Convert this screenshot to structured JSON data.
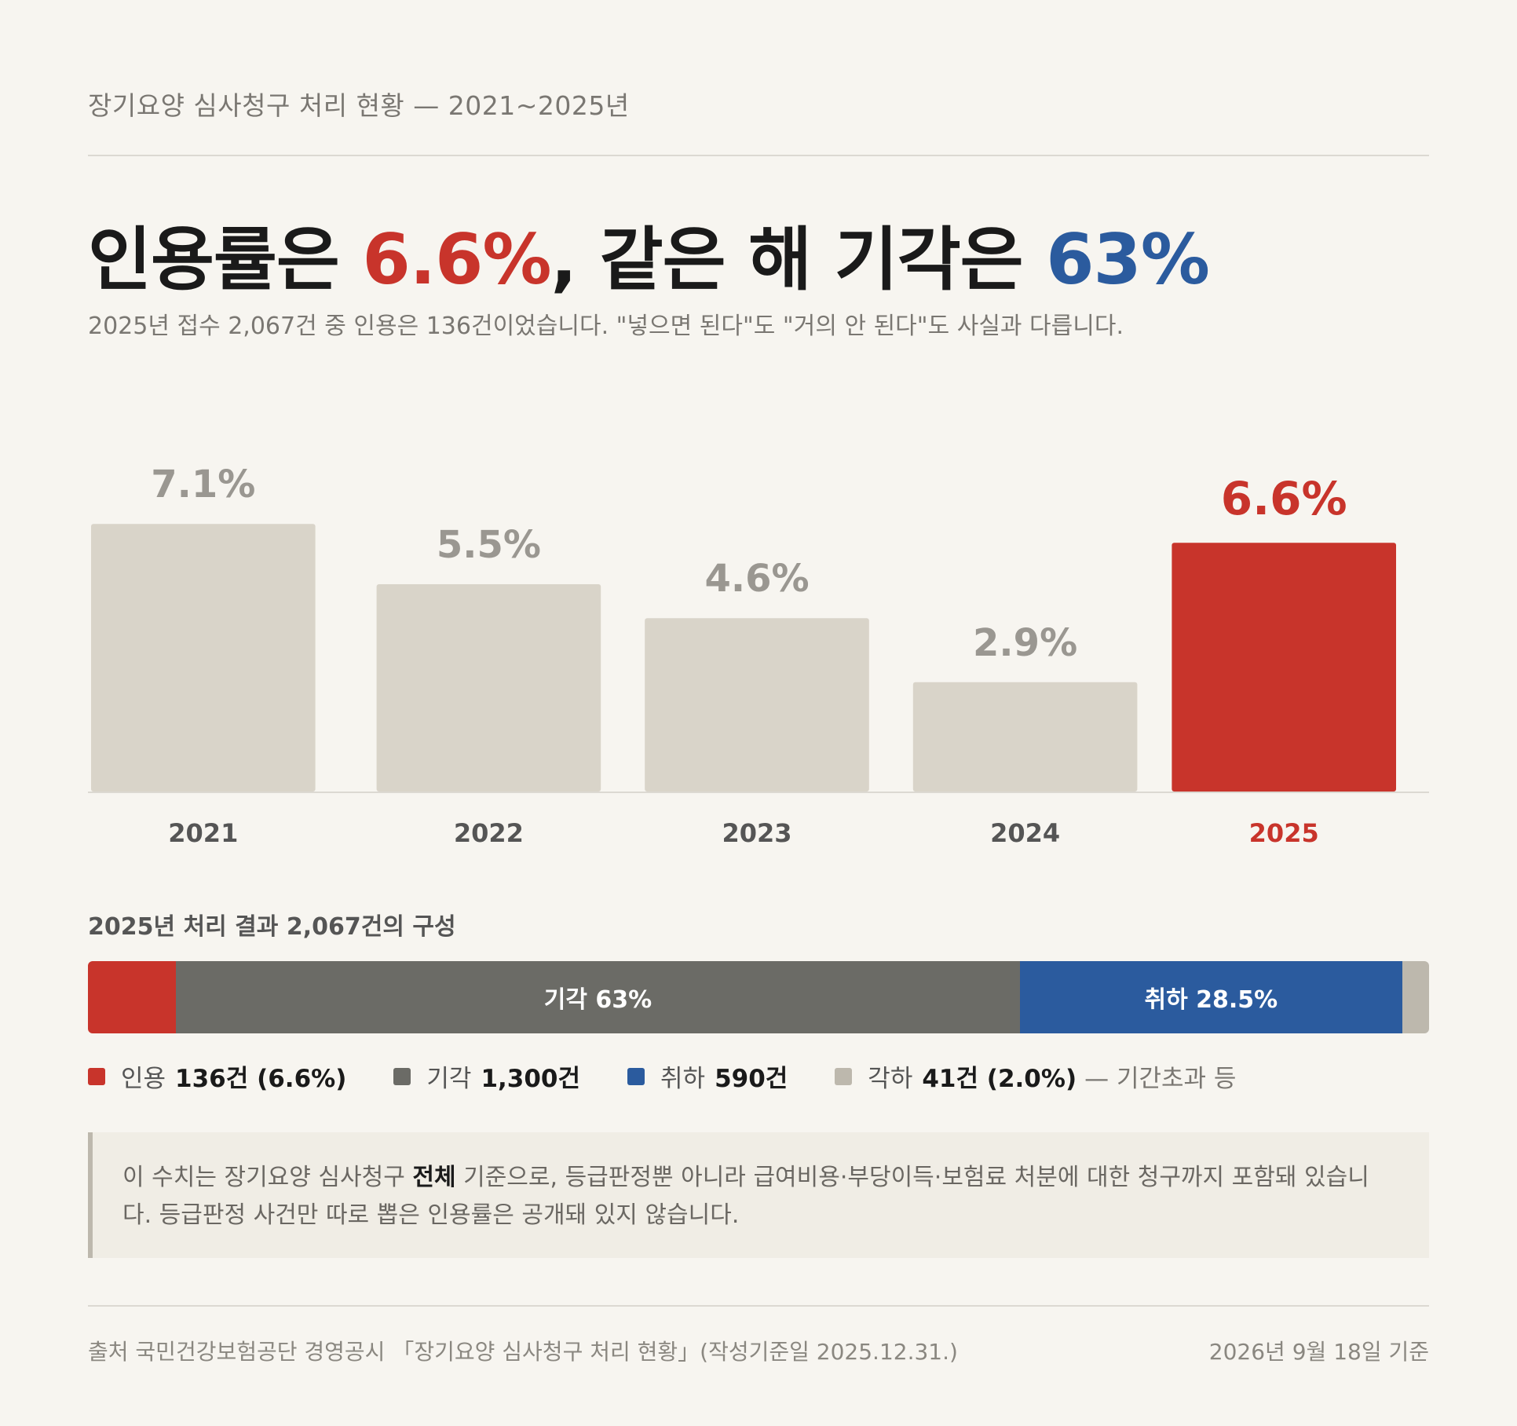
{
  "kicker": "장기요양 심사청구 처리 현황 — 2021~2025년",
  "headline": {
    "part1": "인용률은 ",
    "red_value": "6.6%",
    "part2": ", 같은 해 기각은 ",
    "blue_value": "63%"
  },
  "subtitle": "2025년 접수 2,067건 중 인용은 136건이었습니다. \"넣으면 된다\"도 \"거의 안 된다\"도 사실과 다릅니다.",
  "colors": {
    "highlight": "#c8342b",
    "bar_default": "#d9d4c9",
    "label_default": "#9a9791",
    "axis_label": "#555555",
    "rejected": "#6b6b66",
    "withdrawn": "#2b5b9e",
    "dismissed": "#bdb8ad"
  },
  "chart_data": {
    "type": "bar",
    "categories": [
      "2021",
      "2022",
      "2023",
      "2024",
      "2025"
    ],
    "values": [
      7.1,
      5.5,
      4.6,
      2.9,
      6.6
    ],
    "value_labels": [
      "7.1%",
      "5.5%",
      "4.6%",
      "2.9%",
      "6.6%"
    ],
    "highlight_index": 4,
    "ylim": [
      0,
      7.5
    ],
    "grid": false,
    "title": "",
    "xlabel": "",
    "ylabel": ""
  },
  "breakdown": {
    "title": "2025년 처리 결과 2,067건의 구성",
    "total": 2067,
    "segments": [
      {
        "key": "upheld",
        "label": "인용",
        "count": 136,
        "count_text": "136건",
        "pct_text": "(6.6%)",
        "bar_label": "",
        "color": "#c8342b"
      },
      {
        "key": "rejected",
        "label": "기각",
        "count": 1300,
        "count_text": "1,300건",
        "pct_text": "",
        "bar_label": "기각 63%",
        "color": "#6b6b66"
      },
      {
        "key": "withdrawn",
        "label": "취하",
        "count": 590,
        "count_text": "590건",
        "pct_text": "",
        "bar_label": "취하 28.5%",
        "color": "#2b5b9e"
      },
      {
        "key": "dismissed",
        "label": "각하",
        "count": 41,
        "count_text": "41건",
        "pct_text": "(2.0%)",
        "bar_label": "",
        "note": "— 기간초과 등",
        "color": "#bdb8ad"
      }
    ]
  },
  "callout": {
    "text_before": "이 수치는 장기요양 심사청구 ",
    "text_bold": "전체",
    "text_after": " 기준으로, 등급판정뿐 아니라 급여비용·부당이득·보험료 처분에 대한 청구까지 포함돼 있습니다. 등급판정 사건만 따로 뽑은 인용률은 공개돼 있지 않습니다."
  },
  "footer": {
    "source": "출처 국민건강보험공단 경영공시 「장기요양 심사청구 처리 현황」(작성기준일 2025.12.31.)",
    "as_of": "2026년 9월 18일 기준"
  }
}
